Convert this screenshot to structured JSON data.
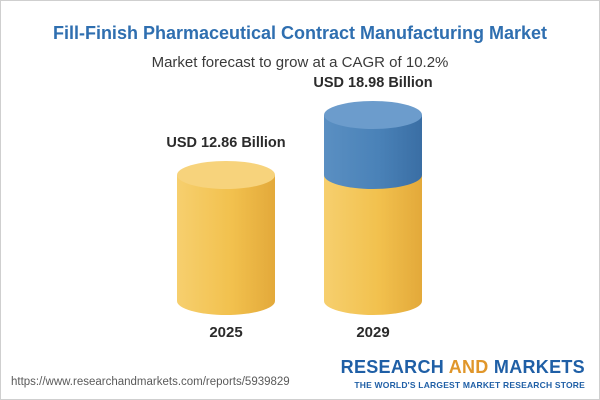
{
  "header": {
    "title": "Fill-Finish Pharmaceutical Contract Manufacturing Market",
    "subtitle": "Market forecast to grow at a CAGR of 10.2%"
  },
  "footer": {
    "url": "https://www.researchandmarkets.com/reports/5939829",
    "brand_part1": "RESEARCH ",
    "brand_part2": "AND",
    "brand_part3": " MARKETS",
    "tagline": "THE WORLD'S LARGEST MARKET RESEARCH STORE"
  },
  "colors": {
    "title": "#2f6fb0",
    "base_body": "#f2c14e",
    "base_top": "#f7d37c",
    "growth_body": "#4a82b8",
    "growth_top": "#6c9ccc"
  },
  "chart_data": {
    "type": "bar",
    "title": "Fill-Finish Pharmaceutical Contract Manufacturing Market",
    "subtitle": "Market forecast to grow at a CAGR of 10.2%",
    "categories": [
      "2025",
      "2029"
    ],
    "values": [
      12.86,
      18.98
    ],
    "data_labels": [
      "USD 12.86 Billion",
      "USD 18.98 Billion"
    ],
    "unit": "USD Billion",
    "cagr": "10.2%",
    "grid": false,
    "legend": "none"
  }
}
